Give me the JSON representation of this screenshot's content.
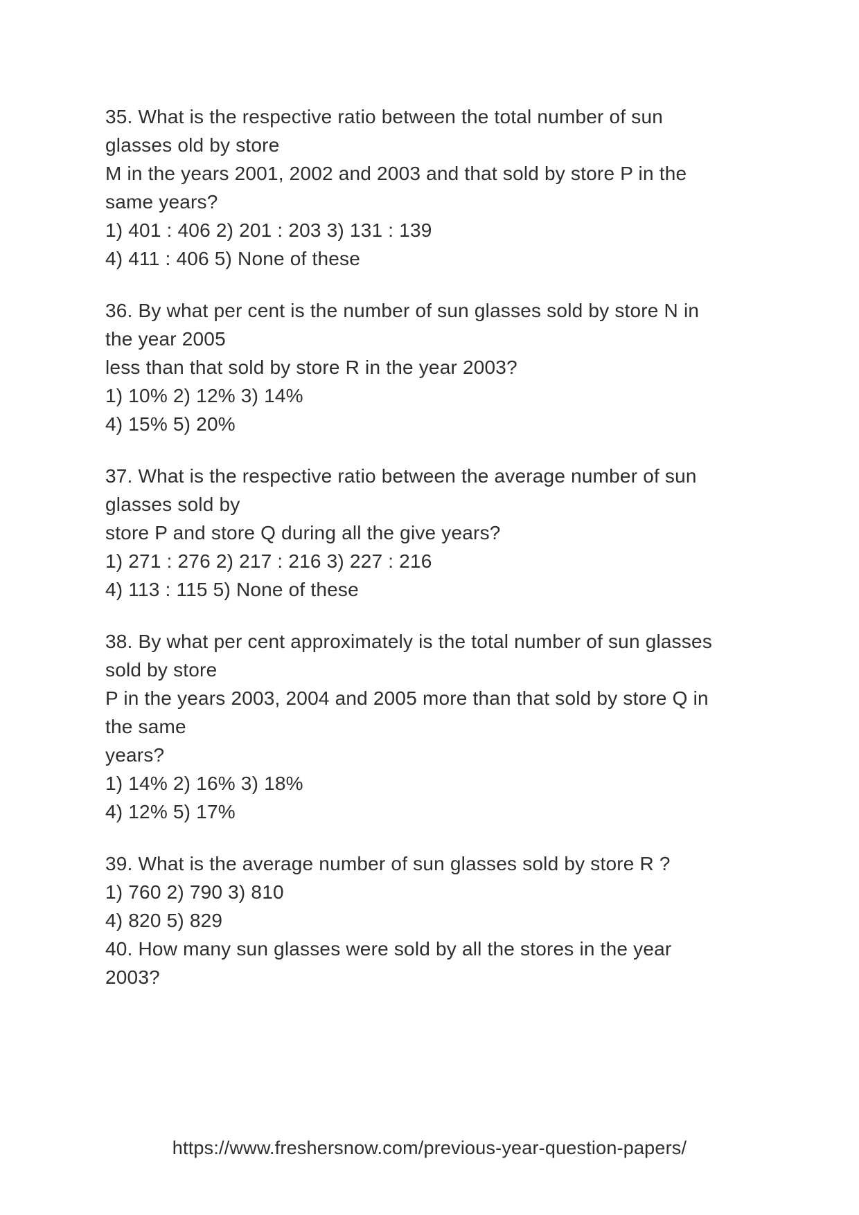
{
  "page": {
    "background_color": "#ffffff",
    "text_color": "#2e2e2e"
  },
  "questions": [
    {
      "number": "35",
      "lines": [
        "35. What is the respective ratio between the total number of sun",
        "glasses old by store",
        "M in the years 2001, 2002 and 2003 and that sold by store P in the",
        "same years?",
        "1) 401 : 406 2) 201 : 203 3) 131 : 139",
        "4) 411 : 406 5) None of these"
      ]
    },
    {
      "number": "36",
      "lines": [
        "36. By what per cent is the number of sun glasses sold by store N in",
        "the year 2005",
        "less than that sold by store R in the year 2003?",
        "1) 10% 2) 12% 3) 14%",
        "4) 15% 5) 20%"
      ]
    },
    {
      "number": "37",
      "lines": [
        "37. What is the respective ratio between the average number of sun",
        "glasses sold by",
        "store P and store Q during all the give years?",
        "1) 271 : 276 2) 217 : 216 3) 227 : 216",
        "4) 113 : 115 5) None of these"
      ]
    },
    {
      "number": "38",
      "lines": [
        "38. By what per cent approximately is the total number of sun glasses",
        "sold by store",
        "P in the years 2003, 2004 and 2005 more than that sold by store Q in",
        "the same",
        "years?",
        "1) 14% 2) 16% 3) 18%",
        "4) 12% 5) 17%"
      ]
    },
    {
      "number": "39",
      "lines": [
        "39. What is the average number of sun glasses sold by store R ?",
        "1) 760 2) 790 3) 810",
        "4) 820 5) 829"
      ]
    },
    {
      "number": "40",
      "attached_to_previous": true,
      "lines": [
        "40. How many sun glasses were sold by all the stores in the year",
        "2003?"
      ]
    }
  ],
  "footer": {
    "url": "https://www.freshersnow.com/previous-year-question-papers/"
  }
}
